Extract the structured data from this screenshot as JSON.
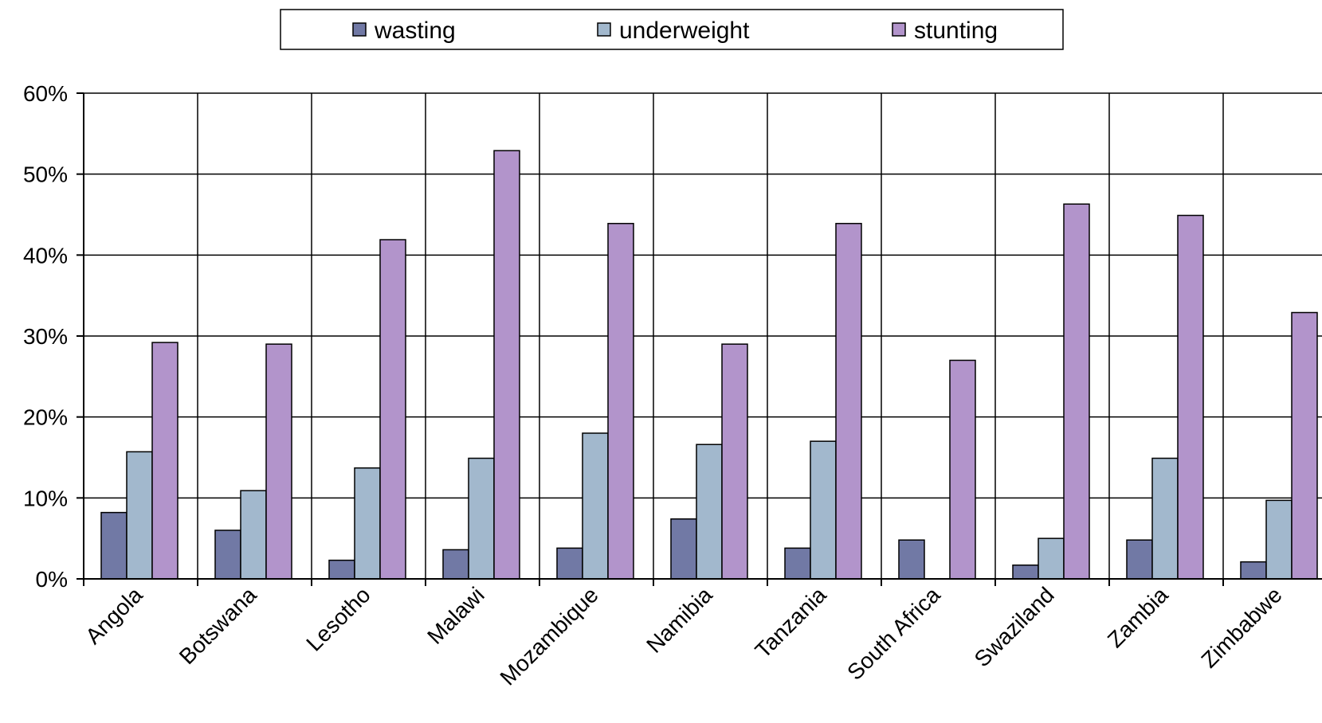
{
  "chart_data": {
    "type": "bar",
    "categories": [
      "Angola",
      "Botswana",
      "Lesotho",
      "Malawi",
      "Mozambique",
      "Namibia",
      "Tanzania",
      "South Africa",
      "Swaziland",
      "Zambia",
      "Zimbabwe"
    ],
    "series": [
      {
        "name": "wasting",
        "color": "#7179A5",
        "values": [
          8.2,
          6.0,
          2.3,
          3.6,
          3.8,
          7.4,
          3.8,
          4.8,
          1.7,
          4.8,
          2.1
        ]
      },
      {
        "name": "underweight",
        "color": "#A2B8CD",
        "values": [
          15.7,
          10.9,
          13.7,
          14.9,
          18.0,
          16.6,
          17.0,
          0,
          5.0,
          14.9,
          9.7
        ]
      },
      {
        "name": "stunting",
        "color": "#B294CB",
        "values": [
          29.2,
          29.0,
          41.9,
          52.9,
          43.9,
          29.0,
          43.9,
          27.0,
          46.3,
          44.9,
          32.9
        ]
      }
    ],
    "y_ticks": [
      "0%",
      "10%",
      "20%",
      "30%",
      "40%",
      "50%",
      "60%"
    ],
    "ylim": [
      0,
      60
    ],
    "grid": true,
    "legend_position": "top"
  }
}
